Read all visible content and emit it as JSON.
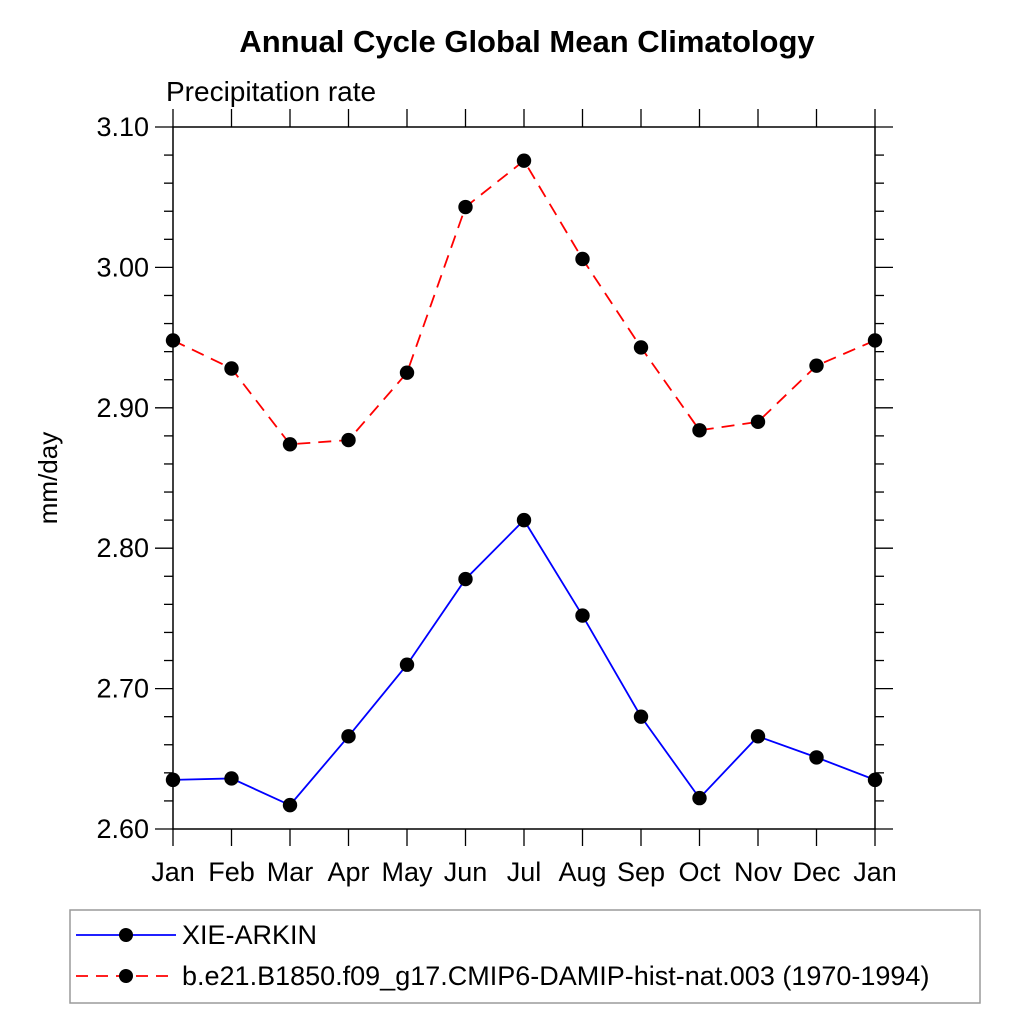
{
  "chart_data": {
    "type": "line",
    "title": "Annual Cycle Global Mean Climatology",
    "subtitle": "Precipitation rate",
    "ylabel": "mm/day",
    "x_tick_labels": [
      "Jan",
      "Feb",
      "Mar",
      "Apr",
      "May",
      "Jun",
      "Jul",
      "Aug",
      "Sep",
      "Oct",
      "Nov",
      "Dec",
      "Jan"
    ],
    "ylim": [
      2.6,
      3.1
    ],
    "y_major_step": 0.1,
    "y_minor_step": 0.02,
    "grid": false,
    "legend_position": "bottom-left",
    "axis_color": "#000000",
    "marker_color": "#000000",
    "series": [
      {
        "name": "XIE-ARKIN",
        "color": "#0000ff",
        "line_style": "solid",
        "marker": "filled-circle",
        "values": [
          2.635,
          2.636,
          2.617,
          2.666,
          2.717,
          2.778,
          2.82,
          2.752,
          2.68,
          2.622,
          2.666,
          2.651,
          2.635
        ]
      },
      {
        "name": "b.e21.B1850.f09_g17.CMIP6-DAMIP-hist-nat.003 (1970-1994)",
        "color": "#ff0000",
        "line_style": "dashed",
        "marker": "filled-circle",
        "values": [
          2.948,
          2.928,
          2.874,
          2.877,
          2.925,
          3.043,
          3.076,
          3.006,
          2.943,
          2.884,
          2.89,
          2.93,
          2.948
        ]
      }
    ]
  }
}
